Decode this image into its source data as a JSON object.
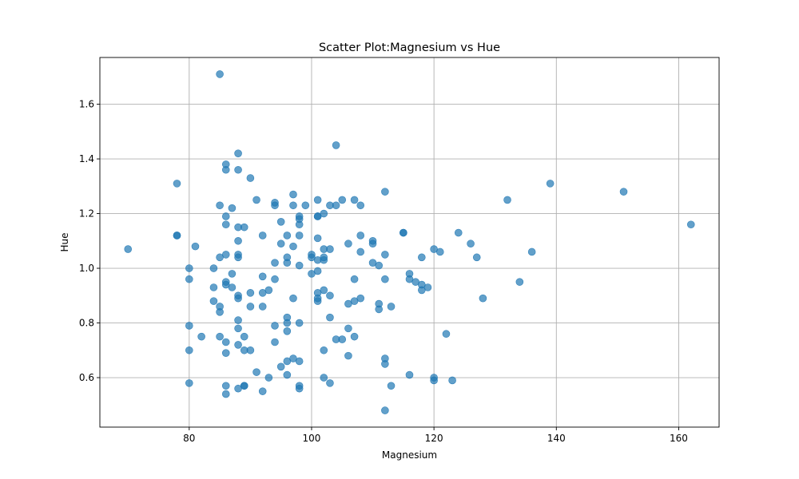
{
  "chart_data": {
    "type": "scatter",
    "title": "Scatter Plot:Magnesium vs Hue",
    "xlabel": "Magnesium",
    "ylabel": "Hue",
    "xlim": [
      65.4,
      166.6
    ],
    "ylim": [
      0.419,
      1.771
    ],
    "xticks": [
      80,
      100,
      120,
      140,
      160
    ],
    "yticks": [
      0.6,
      0.8,
      1.0,
      1.2,
      1.4,
      1.6
    ],
    "xtick_labels": [
      "80",
      "100",
      "120",
      "140",
      "160"
    ],
    "ytick_labels": [
      "0.6",
      "0.8",
      "1.0",
      "1.2",
      "1.4",
      "1.6"
    ],
    "grid": true,
    "marker_color": "#1f77b4",
    "marker_alpha": 0.7,
    "points": [
      [
        70,
        1.07
      ],
      [
        78,
        1.31
      ],
      [
        78,
        1.12
      ],
      [
        78,
        1.12
      ],
      [
        80,
        1.0
      ],
      [
        80,
        0.96
      ],
      [
        80,
        0.79
      ],
      [
        80,
        0.7
      ],
      [
        80,
        0.58
      ],
      [
        81,
        1.08
      ],
      [
        82,
        0.75
      ],
      [
        84,
        1.0
      ],
      [
        84,
        0.93
      ],
      [
        84,
        0.88
      ],
      [
        85,
        1.71
      ],
      [
        85,
        1.23
      ],
      [
        85,
        1.04
      ],
      [
        85,
        0.86
      ],
      [
        85,
        0.84
      ],
      [
        85,
        0.75
      ],
      [
        86,
        1.38
      ],
      [
        86,
        1.36
      ],
      [
        86,
        1.19
      ],
      [
        86,
        1.16
      ],
      [
        86,
        1.05
      ],
      [
        86,
        0.95
      ],
      [
        86,
        0.94
      ],
      [
        86,
        0.73
      ],
      [
        86,
        0.69
      ],
      [
        86,
        0.57
      ],
      [
        86,
        0.54
      ],
      [
        87,
        1.22
      ],
      [
        87,
        0.98
      ],
      [
        87,
        0.93
      ],
      [
        88,
        1.42
      ],
      [
        88,
        1.36
      ],
      [
        88,
        1.15
      ],
      [
        88,
        1.1
      ],
      [
        88,
        1.05
      ],
      [
        88,
        1.04
      ],
      [
        88,
        0.9
      ],
      [
        88,
        0.89
      ],
      [
        88,
        0.81
      ],
      [
        88,
        0.78
      ],
      [
        88,
        0.72
      ],
      [
        88,
        0.56
      ],
      [
        89,
        1.15
      ],
      [
        89,
        0.75
      ],
      [
        89,
        0.7
      ],
      [
        89,
        0.57
      ],
      [
        89,
        0.57
      ],
      [
        90,
        1.33
      ],
      [
        90,
        0.91
      ],
      [
        90,
        0.86
      ],
      [
        90,
        0.7
      ],
      [
        91,
        1.25
      ],
      [
        91,
        0.62
      ],
      [
        92,
        1.12
      ],
      [
        92,
        0.97
      ],
      [
        92,
        0.91
      ],
      [
        92,
        0.86
      ],
      [
        92,
        0.55
      ],
      [
        93,
        0.92
      ],
      [
        93,
        0.6
      ],
      [
        94,
        1.24
      ],
      [
        94,
        1.23
      ],
      [
        94,
        1.02
      ],
      [
        94,
        0.96
      ],
      [
        94,
        0.79
      ],
      [
        94,
        0.73
      ],
      [
        95,
        1.17
      ],
      [
        95,
        1.09
      ],
      [
        95,
        0.64
      ],
      [
        96,
        1.12
      ],
      [
        96,
        1.04
      ],
      [
        96,
        1.02
      ],
      [
        96,
        0.82
      ],
      [
        96,
        0.8
      ],
      [
        96,
        0.77
      ],
      [
        96,
        0.66
      ],
      [
        96,
        0.61
      ],
      [
        97,
        1.27
      ],
      [
        97,
        1.23
      ],
      [
        97,
        1.08
      ],
      [
        97,
        0.89
      ],
      [
        97,
        0.67
      ],
      [
        98,
        1.19
      ],
      [
        98,
        1.18
      ],
      [
        98,
        1.16
      ],
      [
        98,
        1.12
      ],
      [
        98,
        1.01
      ],
      [
        98,
        0.8
      ],
      [
        98,
        0.66
      ],
      [
        98,
        0.57
      ],
      [
        98,
        0.56
      ],
      [
        99,
        1.23
      ],
      [
        100,
        1.05
      ],
      [
        100,
        1.04
      ],
      [
        100,
        0.98
      ],
      [
        101,
        1.25
      ],
      [
        101,
        1.19
      ],
      [
        101,
        1.19
      ],
      [
        101,
        1.11
      ],
      [
        101,
        1.03
      ],
      [
        101,
        0.99
      ],
      [
        101,
        0.91
      ],
      [
        101,
        0.89
      ],
      [
        101,
        0.88
      ],
      [
        102,
        1.2
      ],
      [
        102,
        1.07
      ],
      [
        102,
        1.04
      ],
      [
        102,
        1.03
      ],
      [
        102,
        0.92
      ],
      [
        102,
        0.7
      ],
      [
        102,
        0.6
      ],
      [
        103,
        1.23
      ],
      [
        103,
        1.07
      ],
      [
        103,
        0.9
      ],
      [
        103,
        0.82
      ],
      [
        103,
        0.58
      ],
      [
        104,
        1.45
      ],
      [
        104,
        1.23
      ],
      [
        104,
        0.74
      ],
      [
        105,
        1.25
      ],
      [
        105,
        0.74
      ],
      [
        106,
        1.09
      ],
      [
        106,
        0.87
      ],
      [
        106,
        0.78
      ],
      [
        106,
        0.68
      ],
      [
        107,
        1.25
      ],
      [
        107,
        0.96
      ],
      [
        107,
        0.88
      ],
      [
        107,
        0.75
      ],
      [
        108,
        1.23
      ],
      [
        108,
        1.12
      ],
      [
        108,
        1.06
      ],
      [
        108,
        0.89
      ],
      [
        110,
        1.1
      ],
      [
        110,
        1.09
      ],
      [
        110,
        1.02
      ],
      [
        111,
        1.01
      ],
      [
        111,
        0.87
      ],
      [
        111,
        0.85
      ],
      [
        112,
        1.28
      ],
      [
        112,
        1.05
      ],
      [
        112,
        0.96
      ],
      [
        112,
        0.67
      ],
      [
        112,
        0.65
      ],
      [
        112,
        0.48
      ],
      [
        113,
        0.86
      ],
      [
        113,
        0.57
      ],
      [
        115,
        1.13
      ],
      [
        115,
        1.13
      ],
      [
        116,
        0.98
      ],
      [
        116,
        0.96
      ],
      [
        116,
        0.61
      ],
      [
        117,
        0.95
      ],
      [
        118,
        1.04
      ],
      [
        118,
        0.94
      ],
      [
        118,
        0.92
      ],
      [
        119,
        0.93
      ],
      [
        120,
        1.07
      ],
      [
        120,
        0.6
      ],
      [
        120,
        0.59
      ],
      [
        121,
        1.06
      ],
      [
        122,
        0.76
      ],
      [
        123,
        0.59
      ],
      [
        124,
        1.13
      ],
      [
        126,
        1.09
      ],
      [
        127,
        1.04
      ],
      [
        128,
        0.89
      ],
      [
        132,
        1.25
      ],
      [
        134,
        0.95
      ],
      [
        136,
        1.06
      ],
      [
        139,
        1.31
      ],
      [
        151,
        1.28
      ],
      [
        162,
        1.16
      ]
    ]
  }
}
